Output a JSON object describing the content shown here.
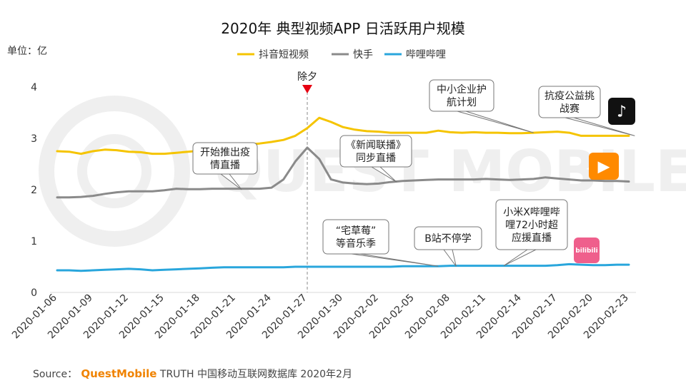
{
  "chart_data": {
    "type": "line",
    "title": "2020年 典型视频APP 日活跃用户规模",
    "unit_label": "单位：亿",
    "ylim": [
      0,
      4
    ],
    "y_ticks": [
      "0",
      "1",
      "2",
      "3",
      "4"
    ],
    "x_tick_labels": [
      "2020-01-06",
      "2020-01-09",
      "2020-01-12",
      "2020-01-15",
      "2020-01-18",
      "2020-01-21",
      "2020-01-24",
      "2020-01-27",
      "2020-01-30",
      "2020-02-02",
      "2020-02-05",
      "2020-02-08",
      "2020-02-11",
      "2020-02-14",
      "2020-02-17",
      "2020-02-20",
      "2020-02-23"
    ],
    "n_days": 49,
    "series": [
      {
        "name": "抖音短视频",
        "color": "#f5c400",
        "values": [
          2.75,
          2.74,
          2.7,
          2.75,
          2.78,
          2.77,
          2.74,
          2.73,
          2.7,
          2.7,
          2.72,
          2.74,
          2.76,
          2.82,
          2.86,
          2.87,
          2.88,
          2.9,
          2.93,
          2.97,
          3.05,
          3.2,
          3.4,
          3.32,
          3.22,
          3.17,
          3.14,
          3.13,
          3.11,
          3.11,
          3.11,
          3.11,
          3.15,
          3.12,
          3.11,
          3.12,
          3.11,
          3.11,
          3.1,
          3.1,
          3.11,
          3.12,
          3.13,
          3.11,
          3.05,
          3.05,
          3.05,
          3.05,
          3.05
        ]
      },
      {
        "name": "快手",
        "color": "#8a8a8a",
        "values": [
          1.85,
          1.85,
          1.86,
          1.88,
          1.92,
          1.95,
          1.97,
          1.97,
          1.97,
          1.99,
          2.02,
          2.01,
          2.01,
          2.02,
          2.02,
          2.02,
          2.02,
          2.02,
          2.04,
          2.2,
          2.55,
          2.82,
          2.6,
          2.2,
          2.14,
          2.12,
          2.11,
          2.12,
          2.15,
          2.17,
          2.18,
          2.19,
          2.2,
          2.2,
          2.2,
          2.2,
          2.21,
          2.2,
          2.19,
          2.2,
          2.21,
          2.24,
          2.22,
          2.2,
          2.18,
          2.18,
          2.17,
          2.17,
          2.16
        ]
      },
      {
        "name": "哔哩哔哩",
        "color": "#29a6dc",
        "values": [
          0.43,
          0.43,
          0.42,
          0.43,
          0.44,
          0.45,
          0.46,
          0.45,
          0.43,
          0.44,
          0.45,
          0.46,
          0.47,
          0.48,
          0.49,
          0.49,
          0.49,
          0.49,
          0.49,
          0.49,
          0.5,
          0.5,
          0.5,
          0.5,
          0.5,
          0.5,
          0.5,
          0.5,
          0.5,
          0.51,
          0.51,
          0.51,
          0.51,
          0.52,
          0.52,
          0.52,
          0.52,
          0.52,
          0.52,
          0.52,
          0.52,
          0.52,
          0.53,
          0.55,
          0.54,
          0.53,
          0.53,
          0.54,
          0.54
        ]
      }
    ],
    "marker": {
      "label": "除夕",
      "day_index": 21
    },
    "annotations": [
      {
        "lines": [
          "开始推出疫",
          "情直播"
        ],
        "day": 15.5,
        "value": 2.0
      },
      {
        "lines": [
          "《新闻联播》",
          "同步直播"
        ],
        "day": 28.5,
        "value": 2.15
      },
      {
        "lines": [
          "中小企业护",
          "航计划"
        ],
        "day": 40,
        "value": 3.11
      },
      {
        "lines": [
          "抗疫公益挑",
          "战赛"
        ],
        "day": 48.5,
        "value": 3.05
      },
      {
        "lines": [
          "“宅草莓”",
          "等音乐季"
        ],
        "day": 32,
        "value": 0.51
      },
      {
        "lines": [
          "B站不停学"
        ],
        "day": 33.5,
        "value": 0.51
      },
      {
        "lines": [
          "小米X哔哩哔",
          "哩72小时超",
          "应援直播"
        ],
        "day": 37.5,
        "value": 0.52
      }
    ]
  },
  "source": {
    "prefix": "Source：",
    "brand": "QuestMobile",
    "rest": "TRUTH 中国移动互联网数据库 2020年2月"
  },
  "watermark": "QUEST MOBILE",
  "app_icons": [
    {
      "name": "douyin-app-icon",
      "color": "#111111",
      "glyph": "♪"
    },
    {
      "name": "kuaishou-app-icon",
      "color": "#ff8a00",
      "glyph": "▶"
    },
    {
      "name": "bilibili-app-icon",
      "color": "#ef5f8c",
      "glyph": "bilibili"
    }
  ]
}
